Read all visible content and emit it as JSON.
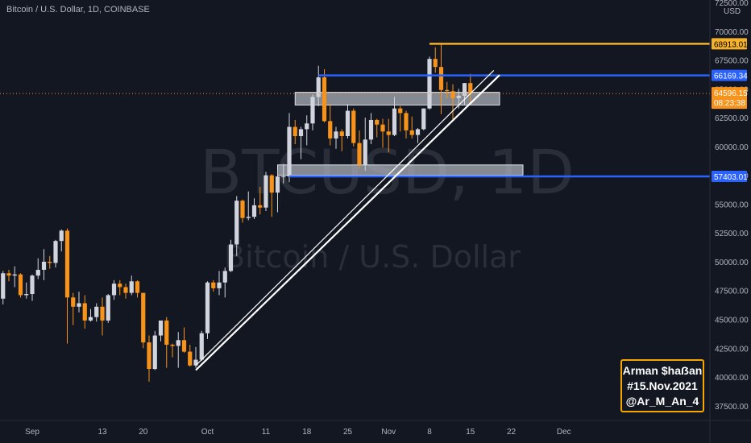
{
  "header": {
    "title": "Bitcoin / U.S. Dollar, 1D, COINBASE"
  },
  "watermark": {
    "symbol": "BTCUSD, 1D",
    "description": "Bitcoin / U.S. Dollar"
  },
  "currency_label": "USD",
  "signature": {
    "line1": "Arman $haẞan",
    "line2": "#15.Nov.2021",
    "line3": "@Ar_M_An_4"
  },
  "colors": {
    "background": "#131722",
    "up": "#d1d4dc",
    "down": "#f7931a",
    "resistance_line": "#2962ff",
    "high_line": "#f5b12a",
    "current_price": "#f7931a",
    "zone": "#b2b5be",
    "trendline": "#ffffff"
  },
  "price_tags": {
    "high": "68913.01",
    "resistance": "66169.34",
    "current": "64596.15",
    "countdown": "08:23:38",
    "support": "57403.01"
  },
  "chart_data": {
    "type": "candlestick",
    "title": "Bitcoin / U.S. Dollar, 1D, COINBASE",
    "xlabel": "",
    "ylabel": "USD",
    "ylim": [
      37000,
      72500
    ],
    "y_ticks": [
      "37500.00",
      "40000.00",
      "42500.00",
      "45000.00",
      "47500.00",
      "50000.00",
      "52500.00",
      "55000.00",
      "57500.00",
      "60000.00",
      "62500.00",
      "65000.00",
      "67500.00",
      "70000.00",
      "72500.00"
    ],
    "x_ticks": [
      "Sep",
      "13",
      "20",
      "Oct",
      "11",
      "18",
      "25",
      "Nov",
      "8",
      "15",
      "22",
      "Dec"
    ],
    "x_tick_dates": [
      "2021-09-01",
      "2021-09-13",
      "2021-09-20",
      "2021-10-01",
      "2021-10-11",
      "2021-10-18",
      "2021-10-25",
      "2021-11-01",
      "2021-11-08",
      "2021-11-15",
      "2021-11-22",
      "2021-12-01"
    ],
    "grid": false,
    "candles": [
      {
        "d": "2021-08-27",
        "o": 46800,
        "h": 49200,
        "l": 46300,
        "c": 49000
      },
      {
        "d": "2021-08-28",
        "o": 49000,
        "h": 49300,
        "l": 48300,
        "c": 48800
      },
      {
        "d": "2021-08-29",
        "o": 48800,
        "h": 49600,
        "l": 47800,
        "c": 48900
      },
      {
        "d": "2021-08-30",
        "o": 48900,
        "h": 49000,
        "l": 46900,
        "c": 47100
      },
      {
        "d": "2021-08-31",
        "o": 47100,
        "h": 48200,
        "l": 46800,
        "c": 47200
      },
      {
        "d": "2021-09-01",
        "o": 47200,
        "h": 48900,
        "l": 46600,
        "c": 48800
      },
      {
        "d": "2021-09-02",
        "o": 48800,
        "h": 50300,
        "l": 48500,
        "c": 49300
      },
      {
        "d": "2021-09-03",
        "o": 49300,
        "h": 51100,
        "l": 48400,
        "c": 50000
      },
      {
        "d": "2021-09-04",
        "o": 50000,
        "h": 50500,
        "l": 49400,
        "c": 49900
      },
      {
        "d": "2021-09-05",
        "o": 49900,
        "h": 51900,
        "l": 49500,
        "c": 51800
      },
      {
        "d": "2021-09-06",
        "o": 51800,
        "h": 52800,
        "l": 50900,
        "c": 52700
      },
      {
        "d": "2021-09-07",
        "o": 52700,
        "h": 52900,
        "l": 42900,
        "c": 46900
      },
      {
        "d": "2021-09-08",
        "o": 46900,
        "h": 47300,
        "l": 44500,
        "c": 46100
      },
      {
        "d": "2021-09-09",
        "o": 46100,
        "h": 47400,
        "l": 45600,
        "c": 46400
      },
      {
        "d": "2021-09-10",
        "o": 46400,
        "h": 47100,
        "l": 44200,
        "c": 44900
      },
      {
        "d": "2021-09-11",
        "o": 44900,
        "h": 45900,
        "l": 44800,
        "c": 45200
      },
      {
        "d": "2021-09-12",
        "o": 45200,
        "h": 46400,
        "l": 44800,
        "c": 46100
      },
      {
        "d": "2021-09-13",
        "o": 46100,
        "h": 46900,
        "l": 43600,
        "c": 44900
      },
      {
        "d": "2021-09-14",
        "o": 44900,
        "h": 47200,
        "l": 44700,
        "c": 47100
      },
      {
        "d": "2021-09-15",
        "o": 47100,
        "h": 48400,
        "l": 46700,
        "c": 48100
      },
      {
        "d": "2021-09-16",
        "o": 48100,
        "h": 48400,
        "l": 47100,
        "c": 47800
      },
      {
        "d": "2021-09-17",
        "o": 47800,
        "h": 48100,
        "l": 46800,
        "c": 47300
      },
      {
        "d": "2021-09-18",
        "o": 47300,
        "h": 48800,
        "l": 47100,
        "c": 48300
      },
      {
        "d": "2021-09-19",
        "o": 48300,
        "h": 48400,
        "l": 46900,
        "c": 47300
      },
      {
        "d": "2021-09-20",
        "o": 47300,
        "h": 47300,
        "l": 42500,
        "c": 43000
      },
      {
        "d": "2021-09-21",
        "o": 43000,
        "h": 43600,
        "l": 39600,
        "c": 40700
      },
      {
        "d": "2021-09-22",
        "o": 40700,
        "h": 44000,
        "l": 40600,
        "c": 43600
      },
      {
        "d": "2021-09-23",
        "o": 43600,
        "h": 44900,
        "l": 43100,
        "c": 44900
      },
      {
        "d": "2021-09-24",
        "o": 44900,
        "h": 45200,
        "l": 40800,
        "c": 42800
      },
      {
        "d": "2021-09-25",
        "o": 42800,
        "h": 42900,
        "l": 41700,
        "c": 42700
      },
      {
        "d": "2021-09-26",
        "o": 42700,
        "h": 43900,
        "l": 40800,
        "c": 43200
      },
      {
        "d": "2021-09-27",
        "o": 43200,
        "h": 44300,
        "l": 42100,
        "c": 42200
      },
      {
        "d": "2021-09-28",
        "o": 42200,
        "h": 42800,
        "l": 40900,
        "c": 41000
      },
      {
        "d": "2021-09-29",
        "o": 41000,
        "h": 42600,
        "l": 40800,
        "c": 41500
      },
      {
        "d": "2021-09-30",
        "o": 41500,
        "h": 44000,
        "l": 41400,
        "c": 43800
      },
      {
        "d": "2021-10-01",
        "o": 43800,
        "h": 48300,
        "l": 43300,
        "c": 48200
      },
      {
        "d": "2021-10-02",
        "o": 48200,
        "h": 48400,
        "l": 47400,
        "c": 47700
      },
      {
        "d": "2021-10-03",
        "o": 47700,
        "h": 49200,
        "l": 47100,
        "c": 48200
      },
      {
        "d": "2021-10-04",
        "o": 48200,
        "h": 49500,
        "l": 46900,
        "c": 49200
      },
      {
        "d": "2021-10-05",
        "o": 49200,
        "h": 51900,
        "l": 49100,
        "c": 51500
      },
      {
        "d": "2021-10-06",
        "o": 51500,
        "h": 55700,
        "l": 50500,
        "c": 55300
      },
      {
        "d": "2021-10-07",
        "o": 55300,
        "h": 55400,
        "l": 53400,
        "c": 53800
      },
      {
        "d": "2021-10-08",
        "o": 53800,
        "h": 56100,
        "l": 53600,
        "c": 53900
      },
      {
        "d": "2021-10-09",
        "o": 53900,
        "h": 55500,
        "l": 53700,
        "c": 54900
      },
      {
        "d": "2021-10-10",
        "o": 54900,
        "h": 56500,
        "l": 54100,
        "c": 54700
      },
      {
        "d": "2021-10-11",
        "o": 54700,
        "h": 57800,
        "l": 54400,
        "c": 57500
      },
      {
        "d": "2021-10-12",
        "o": 57500,
        "h": 57600,
        "l": 53900,
        "c": 56000
      },
      {
        "d": "2021-10-13",
        "o": 56000,
        "h": 58000,
        "l": 54300,
        "c": 57400
      },
      {
        "d": "2021-10-14",
        "o": 57400,
        "h": 58500,
        "l": 56800,
        "c": 57400
      },
      {
        "d": "2021-10-15",
        "o": 57400,
        "h": 62900,
        "l": 56900,
        "c": 61700
      },
      {
        "d": "2021-10-16",
        "o": 61700,
        "h": 62300,
        "l": 60200,
        "c": 60900
      },
      {
        "d": "2021-10-17",
        "o": 60900,
        "h": 61700,
        "l": 58900,
        "c": 61500
      },
      {
        "d": "2021-10-18",
        "o": 61500,
        "h": 62700,
        "l": 60100,
        "c": 62000
      },
      {
        "d": "2021-10-19",
        "o": 62000,
        "h": 64500,
        "l": 61400,
        "c": 64300
      },
      {
        "d": "2021-10-20",
        "o": 64300,
        "h": 67000,
        "l": 63500,
        "c": 66000
      },
      {
        "d": "2021-10-21",
        "o": 66000,
        "h": 66700,
        "l": 62100,
        "c": 62200
      },
      {
        "d": "2021-10-22",
        "o": 62200,
        "h": 63700,
        "l": 60100,
        "c": 60700
      },
      {
        "d": "2021-10-23",
        "o": 60700,
        "h": 61700,
        "l": 59800,
        "c": 61300
      },
      {
        "d": "2021-10-24",
        "o": 61300,
        "h": 61500,
        "l": 59600,
        "c": 60900
      },
      {
        "d": "2021-10-25",
        "o": 60900,
        "h": 63700,
        "l": 60700,
        "c": 63100
      },
      {
        "d": "2021-10-26",
        "o": 63100,
        "h": 63300,
        "l": 60000,
        "c": 60300
      },
      {
        "d": "2021-10-27",
        "o": 60300,
        "h": 61400,
        "l": 58100,
        "c": 58400
      },
      {
        "d": "2021-10-28",
        "o": 58400,
        "h": 62500,
        "l": 57900,
        "c": 60600
      },
      {
        "d": "2021-10-29",
        "o": 60600,
        "h": 62900,
        "l": 60200,
        "c": 62300
      },
      {
        "d": "2021-10-30",
        "o": 62300,
        "h": 62400,
        "l": 60800,
        "c": 61900
      },
      {
        "d": "2021-10-31",
        "o": 61900,
        "h": 62400,
        "l": 59900,
        "c": 61300
      },
      {
        "d": "2021-11-01",
        "o": 61300,
        "h": 62400,
        "l": 59500,
        "c": 61000
      },
      {
        "d": "2021-11-02",
        "o": 61000,
        "h": 64300,
        "l": 60900,
        "c": 63300
      },
      {
        "d": "2021-11-03",
        "o": 63300,
        "h": 63500,
        "l": 61300,
        "c": 62900
      },
      {
        "d": "2021-11-04",
        "o": 62900,
        "h": 63100,
        "l": 60700,
        "c": 61400
      },
      {
        "d": "2021-11-05",
        "o": 61400,
        "h": 62600,
        "l": 60700,
        "c": 61000
      },
      {
        "d": "2021-11-06",
        "o": 61000,
        "h": 61600,
        "l": 60300,
        "c": 61500
      },
      {
        "d": "2021-11-07",
        "o": 61500,
        "h": 63300,
        "l": 61400,
        "c": 63300
      },
      {
        "d": "2021-11-08",
        "o": 63300,
        "h": 67800,
        "l": 63200,
        "c": 67600
      },
      {
        "d": "2021-11-09",
        "o": 67600,
        "h": 68600,
        "l": 66400,
        "c": 66900
      },
      {
        "d": "2021-11-10",
        "o": 66900,
        "h": 68900,
        "l": 62800,
        "c": 64900
      },
      {
        "d": "2021-11-11",
        "o": 64900,
        "h": 65600,
        "l": 64200,
        "c": 64800
      },
      {
        "d": "2021-11-12",
        "o": 64800,
        "h": 65400,
        "l": 62300,
        "c": 64200
      },
      {
        "d": "2021-11-13",
        "o": 64200,
        "h": 65000,
        "l": 63300,
        "c": 64400
      },
      {
        "d": "2021-11-14",
        "o": 64400,
        "h": 65500,
        "l": 63600,
        "c": 65500
      },
      {
        "d": "2021-11-15",
        "o": 65500,
        "h": 66300,
        "l": 63600,
        "c": 64600
      }
    ],
    "horizontal_lines": [
      {
        "price": 68913.01,
        "label": "68913.01",
        "from": "2021-11-08",
        "color": "#f5b12a"
      },
      {
        "price": 66169.34,
        "label": "66169.34",
        "from": "2021-10-20",
        "color": "#2962ff"
      },
      {
        "price": 57403.01,
        "label": "57403.01",
        "from": "2021-10-15",
        "color": "#2962ff"
      }
    ],
    "current_price": 64596.15,
    "zones": [
      {
        "from": "2021-10-16",
        "to": "2021-11-20",
        "low": 63600,
        "high": 64700
      },
      {
        "from": "2021-10-13",
        "to": "2021-11-24",
        "low": 57500,
        "high": 58400
      }
    ],
    "trendlines": [
      {
        "x1": "2021-09-29",
        "y1": 40600,
        "x2": "2021-11-20",
        "y2": 66200
      },
      {
        "x1": "2021-09-29",
        "y1": 41000,
        "x2": "2021-11-19",
        "y2": 66600
      }
    ]
  }
}
